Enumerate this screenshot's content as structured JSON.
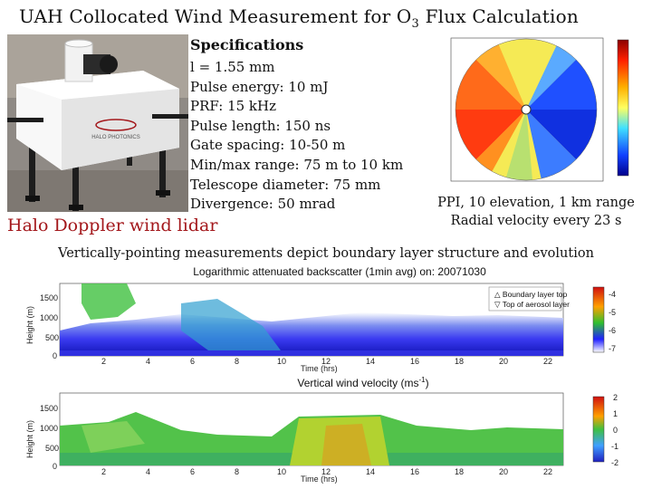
{
  "title": {
    "text": "UAH Collocated Wind Measurement for O",
    "sub": "3",
    "suffix": " Flux Calculation"
  },
  "specs": {
    "heading": "Specifications",
    "items": [
      "l = 1.55 mm",
      "Pulse energy: 10 mJ",
      "PRF: 15 kHz",
      "Pulse length: 150 ns",
      "Gate spacing: 10-50 m",
      "Min/max range: 75 m to 10 km",
      "Telescope diameter: 75 mm",
      "Divergence: 50 mrad"
    ]
  },
  "photo": {
    "brand_label": "HALO PHOTONICS"
  },
  "lidar_caption": "Halo Doppler wind lidar",
  "ppi_caption": {
    "line1": "PPI, 10 elevation, 1 km range",
    "line2": "Radial velocity every 23 s"
  },
  "vertical_caption": "Vertically-pointing measurements depict boundary layer structure and evolution",
  "panel1": {
    "title": "Logarithmic attenuated backscatter (1min avg) on: 20071030",
    "ylabel": "Height (m)",
    "xlabel": "Time (hrs)",
    "legend": [
      "Boundary layer top",
      "Top of aerosol layer"
    ],
    "yticks": [
      "1500",
      "1000",
      "500",
      "0"
    ],
    "xticks": [
      "2",
      "4",
      "6",
      "8",
      "10",
      "12",
      "14",
      "16",
      "18",
      "20",
      "22"
    ],
    "cbar_ticks": [
      "-4",
      "-5",
      "-6",
      "-7"
    ]
  },
  "panel2": {
    "title": "Vertical wind velocity (ms",
    "title_sup": "-1",
    "title_end": ")",
    "ylabel": "Height (m)",
    "xlabel": "Time (hrs)",
    "yticks": [
      "1500",
      "1000",
      "500",
      "0"
    ],
    "xticks": [
      "2",
      "4",
      "6",
      "8",
      "10",
      "12",
      "14",
      "16",
      "18",
      "20",
      "22"
    ],
    "cbar_ticks": [
      "2",
      "1",
      "0",
      "-1",
      "-2"
    ]
  }
}
